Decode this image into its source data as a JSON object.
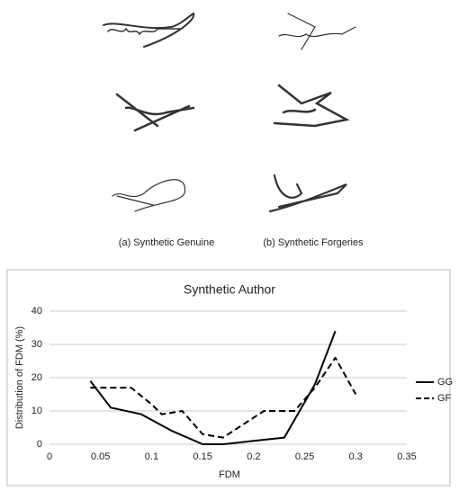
{
  "figure": {
    "captions": [
      "(a) Synthetic Genuine",
      "(b) Synthetic Forgeries"
    ]
  },
  "chart_data": {
    "type": "line",
    "title": "Synthetic Author",
    "x_label": "FDM",
    "y_label": "Distribution of FDM (%)",
    "xlim": [
      0,
      0.35
    ],
    "xticks": [
      0,
      0.05,
      0.1,
      0.15,
      0.2,
      0.25,
      0.3,
      0.35
    ],
    "ylim": [
      0,
      40
    ],
    "yticks": [
      0,
      10,
      20,
      30,
      40
    ],
    "grid": true,
    "legend": "right",
    "series": [
      {
        "name": "GG",
        "color": "#000000",
        "style": "solid",
        "x": [
          0.04,
          0.06,
          0.09,
          0.12,
          0.15,
          0.17,
          0.2,
          0.23,
          0.26,
          0.28
        ],
        "values": [
          19,
          11,
          9,
          4,
          0,
          0,
          1,
          2,
          18,
          34
        ]
      },
      {
        "name": "GF",
        "color": "#000000",
        "style": "dashed",
        "x": [
          0.04,
          0.07,
          0.08,
          0.1,
          0.11,
          0.13,
          0.15,
          0.17,
          0.21,
          0.24,
          0.26,
          0.28,
          0.3
        ],
        "values": [
          17,
          17,
          17,
          12,
          9,
          10,
          3,
          2,
          10,
          10,
          17,
          26,
          15
        ]
      }
    ]
  }
}
